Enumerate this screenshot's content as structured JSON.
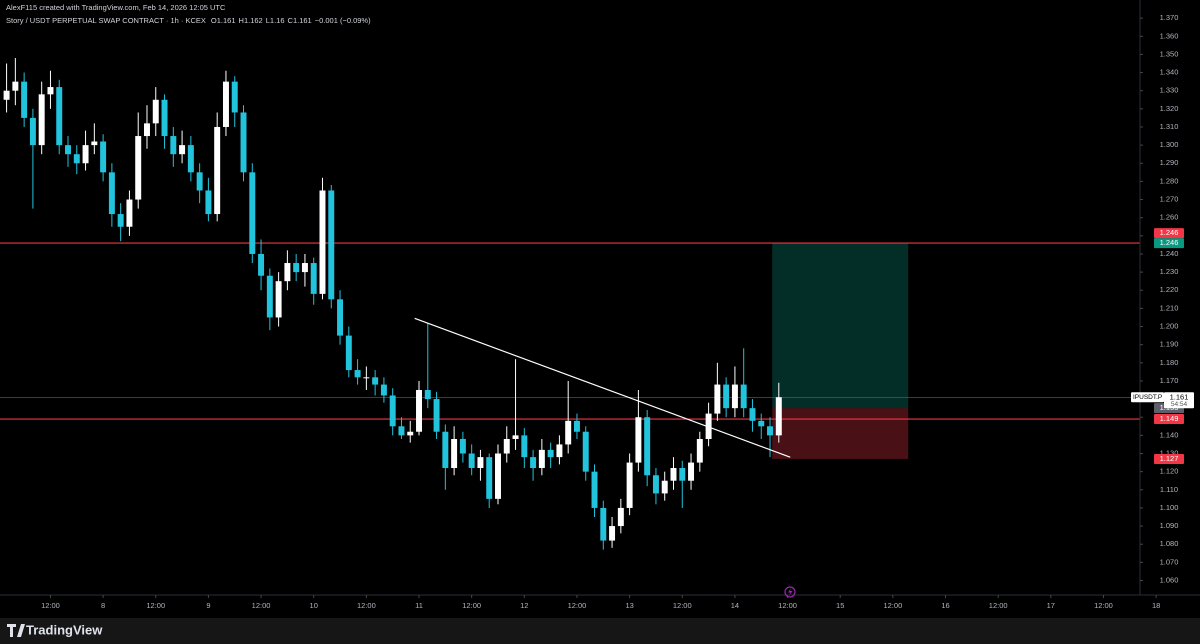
{
  "header": {
    "credit": "AlexF115 created with TradingView.com, Feb 14, 2026 12:05 UTC",
    "brand": "TradingView"
  },
  "chart_data": {
    "type": "candlestick",
    "symbol": "Story / USDT PERPETUAL SWAP CONTRACT · 1h · KCEX",
    "ohlc_labels": [
      "O",
      "H",
      "L",
      "C"
    ],
    "ohlc_values": [
      1.161,
      1.162,
      1.16,
      1.161
    ],
    "change": "−0.001 (−0.09%)",
    "up_color": "#ffffff",
    "down_color": "#22c3dd",
    "x": [
      2,
      4,
      6,
      8,
      10,
      12,
      14,
      16,
      18,
      20,
      22,
      24,
      26,
      28,
      30,
      32,
      34,
      36,
      38,
      40,
      42,
      44,
      46,
      48,
      50,
      52,
      54,
      56,
      58,
      60,
      62,
      64,
      66,
      68,
      70,
      72,
      74,
      76,
      78,
      80,
      82,
      84,
      86,
      88,
      90,
      92,
      94,
      96,
      98,
      100,
      102,
      104,
      106,
      108,
      110,
      112,
      114,
      116,
      118,
      120,
      122,
      124,
      126,
      128,
      130,
      132,
      134,
      136,
      138,
      140,
      142,
      144,
      146,
      148,
      150,
      152,
      154,
      156,
      158,
      160,
      162,
      164,
      166,
      168,
      170,
      172,
      174,
      176,
      178
    ],
    "candles": [
      [
        1.325,
        1.345,
        1.318,
        1.33
      ],
      [
        1.33,
        1.348,
        1.322,
        1.335
      ],
      [
        1.335,
        1.34,
        1.31,
        1.315
      ],
      [
        1.315,
        1.32,
        1.265,
        1.3
      ],
      [
        1.3,
        1.335,
        1.295,
        1.328
      ],
      [
        1.328,
        1.341,
        1.32,
        1.332
      ],
      [
        1.332,
        1.336,
        1.295,
        1.3
      ],
      [
        1.3,
        1.305,
        1.288,
        1.295
      ],
      [
        1.295,
        1.3,
        1.284,
        1.29
      ],
      [
        1.29,
        1.308,
        1.286,
        1.3
      ],
      [
        1.3,
        1.312,
        1.295,
        1.302
      ],
      [
        1.302,
        1.306,
        1.28,
        1.285
      ],
      [
        1.285,
        1.29,
        1.255,
        1.262
      ],
      [
        1.262,
        1.268,
        1.247,
        1.255
      ],
      [
        1.255,
        1.275,
        1.25,
        1.27
      ],
      [
        1.27,
        1.318,
        1.265,
        1.305
      ],
      [
        1.305,
        1.322,
        1.298,
        1.312
      ],
      [
        1.312,
        1.332,
        1.305,
        1.325
      ],
      [
        1.325,
        1.328,
        1.298,
        1.305
      ],
      [
        1.305,
        1.31,
        1.288,
        1.295
      ],
      [
        1.295,
        1.308,
        1.29,
        1.3
      ],
      [
        1.3,
        1.305,
        1.28,
        1.285
      ],
      [
        1.285,
        1.29,
        1.268,
        1.275
      ],
      [
        1.275,
        1.282,
        1.258,
        1.262
      ],
      [
        1.262,
        1.318,
        1.258,
        1.31
      ],
      [
        1.31,
        1.341,
        1.305,
        1.335
      ],
      [
        1.335,
        1.338,
        1.31,
        1.318
      ],
      [
        1.318,
        1.322,
        1.28,
        1.285
      ],
      [
        1.285,
        1.29,
        1.235,
        1.24
      ],
      [
        1.24,
        1.248,
        1.22,
        1.228
      ],
      [
        1.228,
        1.232,
        1.198,
        1.205
      ],
      [
        1.205,
        1.23,
        1.2,
        1.225
      ],
      [
        1.225,
        1.242,
        1.22,
        1.235
      ],
      [
        1.235,
        1.24,
        1.225,
        1.23
      ],
      [
        1.23,
        1.24,
        1.222,
        1.235
      ],
      [
        1.235,
        1.238,
        1.212,
        1.218
      ],
      [
        1.218,
        1.282,
        1.215,
        1.275
      ],
      [
        1.275,
        1.278,
        1.21,
        1.215
      ],
      [
        1.215,
        1.22,
        1.19,
        1.195
      ],
      [
        1.195,
        1.2,
        1.172,
        1.176
      ],
      [
        1.176,
        1.182,
        1.168,
        1.172
      ],
      [
        1.172,
        1.178,
        1.165,
        1.172
      ],
      [
        1.172,
        1.176,
        1.162,
        1.168
      ],
      [
        1.168,
        1.172,
        1.158,
        1.162
      ],
      [
        1.162,
        1.166,
        1.14,
        1.145
      ],
      [
        1.145,
        1.15,
        1.138,
        1.14
      ],
      [
        1.14,
        1.148,
        1.136,
        1.142
      ],
      [
        1.142,
        1.17,
        1.14,
        1.165
      ],
      [
        1.165,
        1.202,
        1.155,
        1.16
      ],
      [
        1.16,
        1.164,
        1.138,
        1.142
      ],
      [
        1.142,
        1.146,
        1.11,
        1.122
      ],
      [
        1.122,
        1.145,
        1.118,
        1.138
      ],
      [
        1.138,
        1.142,
        1.125,
        1.13
      ],
      [
        1.13,
        1.135,
        1.118,
        1.122
      ],
      [
        1.122,
        1.132,
        1.115,
        1.128
      ],
      [
        1.128,
        1.13,
        1.1,
        1.105
      ],
      [
        1.105,
        1.135,
        1.102,
        1.13
      ],
      [
        1.13,
        1.145,
        1.125,
        1.138
      ],
      [
        1.138,
        1.182,
        1.132,
        1.14
      ],
      [
        1.14,
        1.144,
        1.122,
        1.128
      ],
      [
        1.128,
        1.132,
        1.115,
        1.122
      ],
      [
        1.122,
        1.138,
        1.118,
        1.132
      ],
      [
        1.132,
        1.136,
        1.122,
        1.128
      ],
      [
        1.128,
        1.14,
        1.124,
        1.135
      ],
      [
        1.135,
        1.17,
        1.13,
        1.148
      ],
      [
        1.148,
        1.152,
        1.138,
        1.142
      ],
      [
        1.142,
        1.145,
        1.115,
        1.12
      ],
      [
        1.12,
        1.124,
        1.095,
        1.1
      ],
      [
        1.1,
        1.104,
        1.077,
        1.082
      ],
      [
        1.082,
        1.095,
        1.078,
        1.09
      ],
      [
        1.09,
        1.105,
        1.086,
        1.1
      ],
      [
        1.1,
        1.13,
        1.096,
        1.125
      ],
      [
        1.125,
        1.165,
        1.12,
        1.15
      ],
      [
        1.15,
        1.154,
        1.112,
        1.118
      ],
      [
        1.118,
        1.122,
        1.102,
        1.108
      ],
      [
        1.108,
        1.12,
        1.104,
        1.115
      ],
      [
        1.115,
        1.128,
        1.11,
        1.122
      ],
      [
        1.122,
        1.126,
        1.1,
        1.115
      ],
      [
        1.115,
        1.13,
        1.11,
        1.125
      ],
      [
        1.125,
        1.142,
        1.12,
        1.138
      ],
      [
        1.138,
        1.158,
        1.134,
        1.152
      ],
      [
        1.152,
        1.18,
        1.148,
        1.168
      ],
      [
        1.168,
        1.172,
        1.15,
        1.155
      ],
      [
        1.155,
        1.178,
        1.15,
        1.168
      ],
      [
        1.168,
        1.188,
        1.15,
        1.155
      ],
      [
        1.155,
        1.16,
        1.142,
        1.148
      ],
      [
        1.148,
        1.152,
        1.138,
        1.145
      ],
      [
        1.145,
        1.15,
        1.128,
        1.14
      ],
      [
        1.14,
        1.169,
        1.136,
        1.161
      ]
    ],
    "xlim": [
      0.5,
      274
    ],
    "xticks": [
      {
        "value": 12,
        "label": "12:00"
      },
      {
        "value": 24,
        "label": "8"
      },
      {
        "value": 36,
        "label": "12:00"
      },
      {
        "value": 48,
        "label": "9"
      },
      {
        "value": 60,
        "label": "12:00"
      },
      {
        "value": 72,
        "label": "10"
      },
      {
        "value": 84,
        "label": "12:00"
      },
      {
        "value": 96,
        "label": "11"
      },
      {
        "value": 108,
        "label": "12:00"
      },
      {
        "value": 120,
        "label": "12"
      },
      {
        "value": 132,
        "label": "12:00"
      },
      {
        "value": 144,
        "label": "13"
      },
      {
        "value": 156,
        "label": "12:00"
      },
      {
        "value": 168,
        "label": "14"
      },
      {
        "value": 180,
        "label": "12:00"
      },
      {
        "value": 192,
        "label": "15"
      },
      {
        "value": 204,
        "label": "12:00"
      },
      {
        "value": 216,
        "label": "16"
      },
      {
        "value": 228,
        "label": "12:00"
      },
      {
        "value": 240,
        "label": "17"
      },
      {
        "value": 252,
        "label": "12:00"
      },
      {
        "value": 264,
        "label": "18"
      }
    ],
    "ylim": [
      1.052,
      1.38
    ],
    "yticks": [
      {
        "value": 1.06,
        "label": "1.060"
      },
      {
        "value": 1.07,
        "label": "1.070"
      },
      {
        "value": 1.08,
        "label": "1.080"
      },
      {
        "value": 1.09,
        "label": "1.090"
      },
      {
        "value": 1.1,
        "label": "1.100"
      },
      {
        "value": 1.11,
        "label": "1.110"
      },
      {
        "value": 1.12,
        "label": "1.120"
      },
      {
        "value": 1.13,
        "label": "1.130"
      },
      {
        "value": 1.14,
        "label": "1.140"
      },
      {
        "value": 1.15,
        "label": "1.150"
      },
      {
        "value": 1.16,
        "label": "1.160"
      },
      {
        "value": 1.17,
        "label": "1.170"
      },
      {
        "value": 1.18,
        "label": "1.180"
      },
      {
        "value": 1.19,
        "label": "1.190"
      },
      {
        "value": 1.2,
        "label": "1.200"
      },
      {
        "value": 1.21,
        "label": "1.210"
      },
      {
        "value": 1.22,
        "label": "1.220"
      },
      {
        "value": 1.23,
        "label": "1.230"
      },
      {
        "value": 1.24,
        "label": "1.240"
      },
      {
        "value": 1.25,
        "label": "1.250"
      },
      {
        "value": 1.26,
        "label": "1.260"
      },
      {
        "value": 1.27,
        "label": "1.270"
      },
      {
        "value": 1.28,
        "label": "1.280"
      },
      {
        "value": 1.29,
        "label": "1.290"
      },
      {
        "value": 1.3,
        "label": "1.300"
      },
      {
        "value": 1.31,
        "label": "1.310"
      },
      {
        "value": 1.32,
        "label": "1.320"
      },
      {
        "value": 1.33,
        "label": "1.330"
      },
      {
        "value": 1.34,
        "label": "1.340"
      },
      {
        "value": 1.35,
        "label": "1.350"
      },
      {
        "value": 1.36,
        "label": "1.360"
      },
      {
        "value": 1.37,
        "label": "1.370"
      }
    ],
    "hlines": [
      {
        "value": 1.246,
        "color": "#f23645"
      },
      {
        "value": 1.149,
        "color": "#f23645"
      }
    ],
    "trendline": {
      "x": [
        95,
        180.6
      ],
      "y": [
        1.2045,
        1.128
      ],
      "color": "#ffffff"
    },
    "position": {
      "x": [
        176.5,
        207.5
      ],
      "target": 1.246,
      "entry": 1.155,
      "stop": 1.127,
      "profit_color": "#089981",
      "loss_color": "#f23645",
      "entry_color": "#5d606b"
    },
    "last": {
      "ticker": "IPUSDT.P",
      "price": 1.161,
      "countdown": "54:54"
    }
  }
}
